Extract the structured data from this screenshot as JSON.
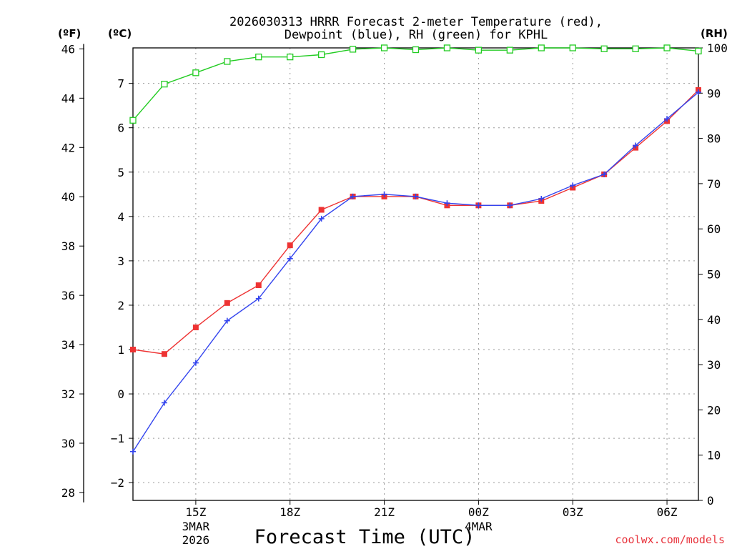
{
  "chart_data": {
    "type": "line",
    "title_line1": "2026030313 HRRR Forecast 2-meter Temperature (red),",
    "title_line2": "Dewpoint (blue), RH (green) for KPHL",
    "xlabel": "Forecast Time (UTC)",
    "credit": "coolwx.com/models",
    "unit_f": "(ºF)",
    "unit_c": "(ºC)",
    "unit_rh": "(RH)",
    "x_hours": [
      13,
      14,
      15,
      16,
      17,
      18,
      19,
      20,
      21,
      22,
      23,
      24,
      25,
      26,
      27,
      28,
      29,
      30,
      31
    ],
    "xlim": [
      13,
      31
    ],
    "x_ticks": [
      {
        "hour": 15,
        "label": "15Z",
        "sub1": "3MAR",
        "sub2": "2026"
      },
      {
        "hour": 18,
        "label": "18Z",
        "sub1": "",
        "sub2": ""
      },
      {
        "hour": 21,
        "label": "21Z",
        "sub1": "",
        "sub2": ""
      },
      {
        "hour": 24,
        "label": "00Z",
        "sub1": "4MAR",
        "sub2": ""
      },
      {
        "hour": 27,
        "label": "03Z",
        "sub1": "",
        "sub2": ""
      },
      {
        "hour": 30,
        "label": "06Z",
        "sub1": "",
        "sub2": ""
      }
    ],
    "ylim_c": [
      -2.4,
      7.8
    ],
    "y_ticks_c": [
      -2,
      -1,
      0,
      1,
      2,
      3,
      4,
      5,
      6,
      7
    ],
    "y_ticks_f": [
      28,
      30,
      32,
      34,
      36,
      38,
      40,
      42,
      44,
      46
    ],
    "ylim_rh": [
      0,
      100
    ],
    "y_ticks_rh": [
      0,
      10,
      20,
      30,
      40,
      50,
      60,
      70,
      80,
      90,
      100
    ],
    "series": [
      {
        "name": "Temperature",
        "unit": "C",
        "color": "#ee3333",
        "marker": "square",
        "values": [
          1.0,
          0.9,
          1.5,
          2.05,
          2.45,
          3.35,
          4.15,
          4.45,
          4.45,
          4.45,
          4.25,
          4.25,
          4.25,
          4.35,
          4.65,
          4.95,
          5.55,
          6.15,
          6.85
        ]
      },
      {
        "name": "Dewpoint",
        "unit": "C",
        "color": "#3344ee",
        "marker": "plus",
        "values": [
          -1.3,
          -0.2,
          0.7,
          1.65,
          2.15,
          3.05,
          3.95,
          4.45,
          4.5,
          4.45,
          4.3,
          4.25,
          4.25,
          4.4,
          4.7,
          4.95,
          5.6,
          6.2,
          6.8
        ]
      },
      {
        "name": "Relative Humidity",
        "unit": "RH",
        "color": "#22cc22",
        "marker": "open-square",
        "values": [
          84,
          92,
          94.5,
          97,
          98,
          98,
          98.5,
          99.7,
          100,
          99.6,
          100,
          99.5,
          99.5,
          100,
          100,
          99.8,
          99.8,
          100,
          99.3
        ]
      }
    ]
  }
}
